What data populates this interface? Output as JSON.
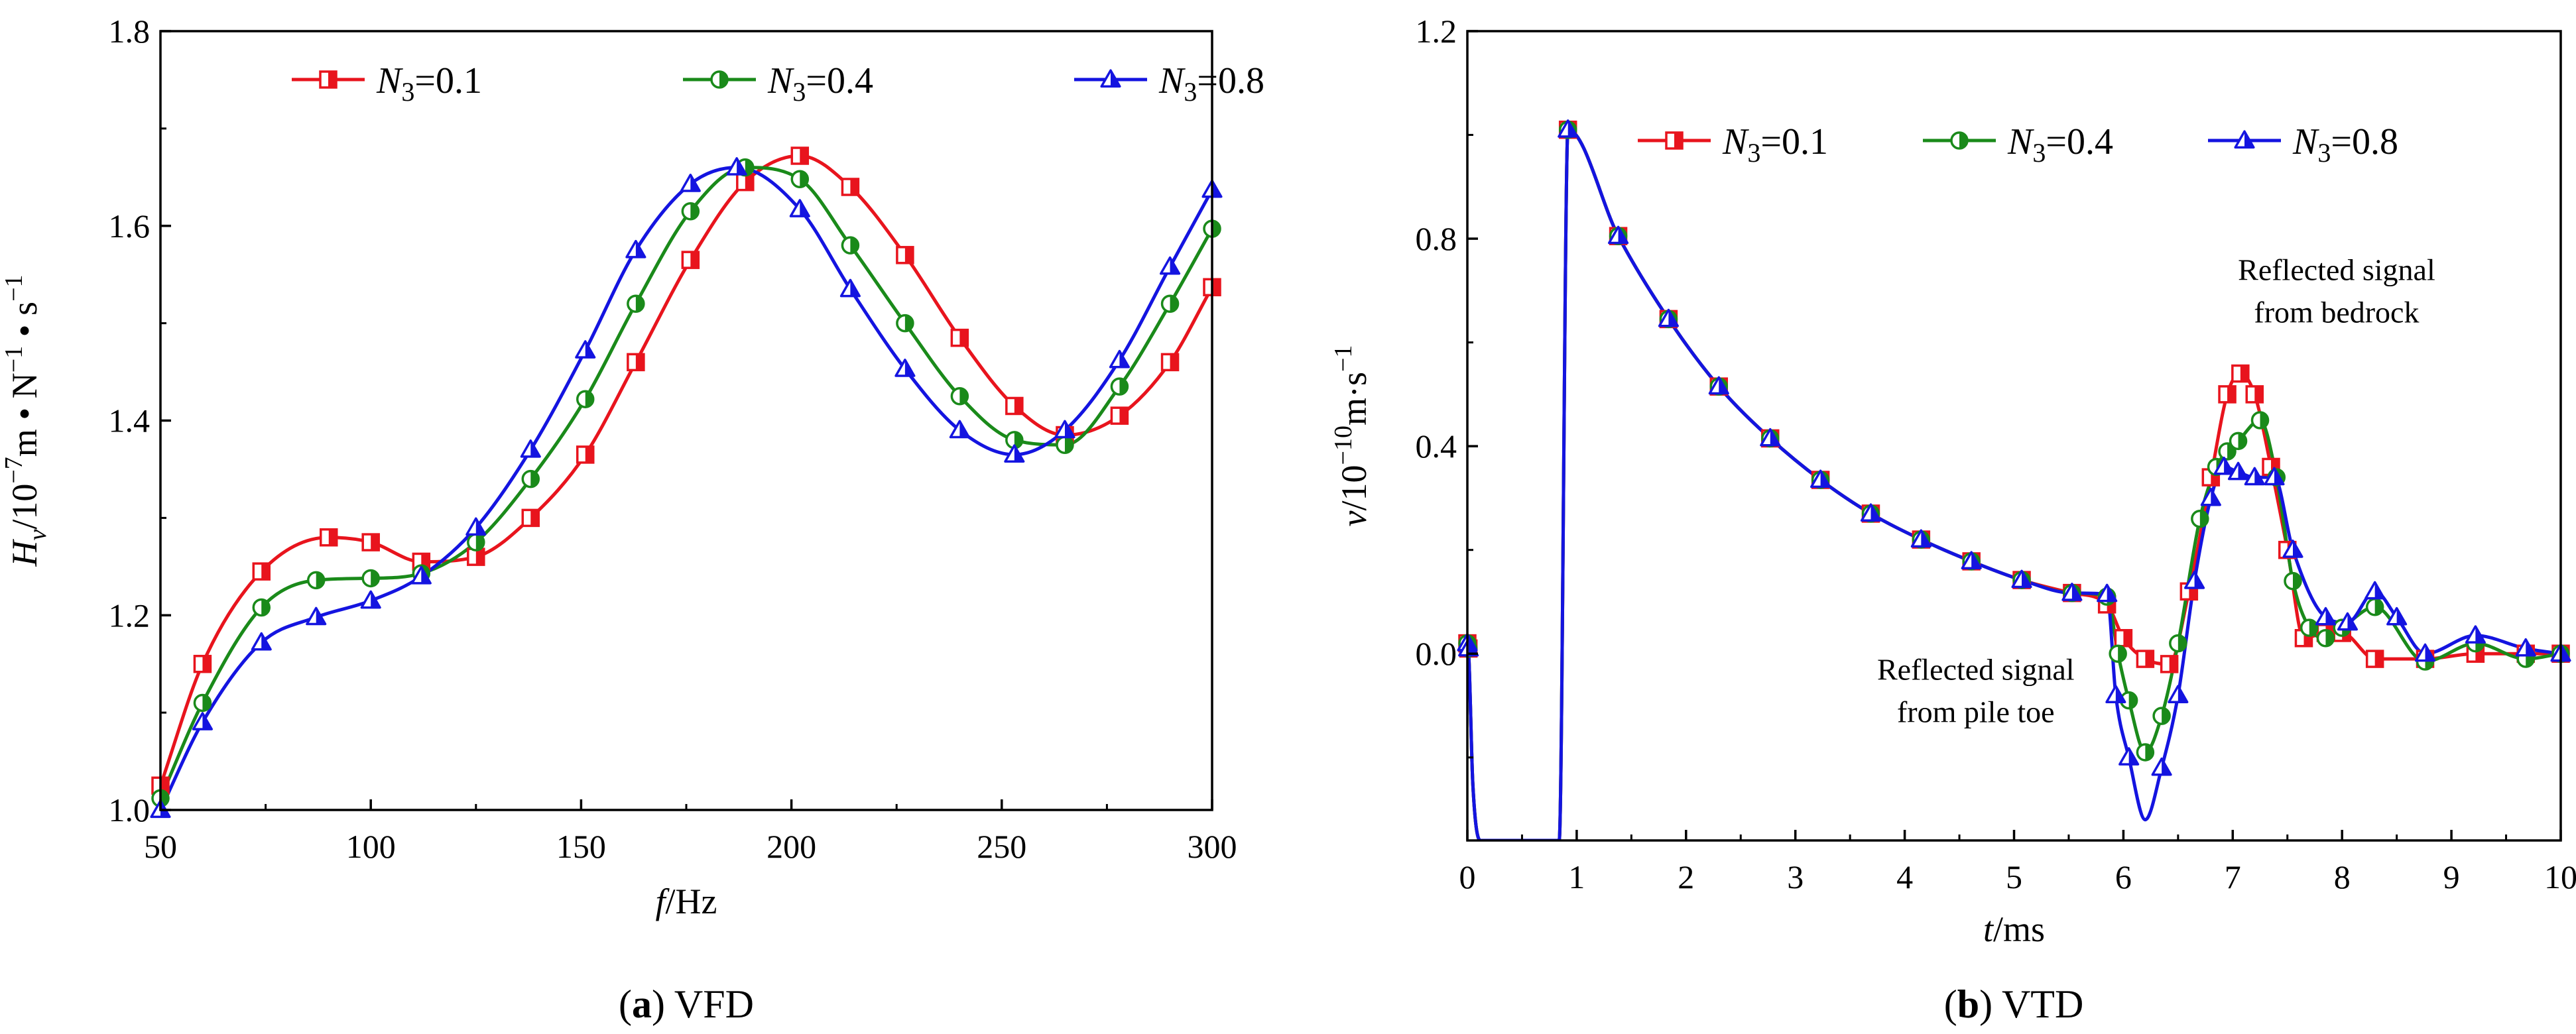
{
  "chart_data": [
    {
      "type": "line",
      "panel": "a",
      "caption": {
        "letter": "a",
        "text": " VFD"
      },
      "xlabel": {
        "var": "f",
        "unit": "/Hz"
      },
      "ylabel": {
        "var": "H",
        "sub": "v",
        "pre": "/10",
        "exp1": "−7",
        "mid": "m • N",
        "exp2": "−1",
        "mid2": " • s",
        "exp3": "−1"
      },
      "xlim": [
        50,
        300
      ],
      "ylim": [
        1.0,
        1.8
      ],
      "xticks": [
        50,
        100,
        150,
        200,
        250,
        300
      ],
      "yticks": [
        1.0,
        1.2,
        1.4,
        1.6,
        1.8
      ],
      "yprecision": 1,
      "legend_position": "top",
      "series": [
        {
          "label_var": "N",
          "label_sub": "3",
          "label_val": "=0.1",
          "color": "#e8141d",
          "marker": "square-half",
          "x": [
            50,
            60,
            74,
            90,
            100,
            112,
            125,
            138,
            151,
            163,
            176,
            189,
            202,
            214,
            227,
            240,
            253,
            265,
            278,
            290,
            300
          ],
          "y": [
            1.025,
            1.15,
            1.245,
            1.28,
            1.275,
            1.255,
            1.26,
            1.3,
            1.365,
            1.46,
            1.565,
            1.645,
            1.672,
            1.64,
            1.57,
            1.485,
            1.415,
            1.385,
            1.405,
            1.46,
            1.537
          ]
        },
        {
          "label_var": "N",
          "label_sub": "3",
          "label_val": "=0.4",
          "color": "#1a8a1a",
          "marker": "circle-half",
          "x": [
            50,
            60,
            74,
            87,
            100,
            112,
            125,
            138,
            151,
            163,
            176,
            189,
            202,
            214,
            227,
            240,
            253,
            265,
            278,
            290,
            300
          ],
          "y": [
            1.012,
            1.11,
            1.208,
            1.236,
            1.238,
            1.243,
            1.275,
            1.34,
            1.422,
            1.52,
            1.615,
            1.66,
            1.648,
            1.58,
            1.5,
            1.425,
            1.38,
            1.375,
            1.435,
            1.52,
            1.597
          ]
        },
        {
          "label_var": "N",
          "label_sub": "3",
          "label_val": "=0.8",
          "color": "#1414e0",
          "marker": "triangle-half",
          "x": [
            50,
            60,
            74,
            87,
            100,
            112,
            125,
            138,
            151,
            163,
            176,
            187,
            202,
            214,
            227,
            240,
            253,
            265,
            278,
            290,
            300
          ],
          "y": [
            1.0,
            1.09,
            1.172,
            1.198,
            1.215,
            1.24,
            1.29,
            1.37,
            1.472,
            1.575,
            1.643,
            1.66,
            1.617,
            1.535,
            1.453,
            1.39,
            1.365,
            1.39,
            1.462,
            1.558,
            1.637
          ]
        }
      ]
    },
    {
      "type": "line",
      "panel": "b",
      "caption": {
        "letter": "b",
        "text": " VTD"
      },
      "xlabel": {
        "var": "t",
        "unit": "/ms"
      },
      "ylabel": {
        "var": "v",
        "pre": "/10",
        "exp1": "−10",
        "mid": "m·s",
        "exp2": "−1"
      },
      "xlim": [
        0,
        10
      ],
      "ylim": [
        -0.36,
        1.2
      ],
      "xticks": [
        0,
        1,
        2,
        3,
        4,
        5,
        6,
        7,
        8,
        9,
        10
      ],
      "yticks": [
        0.0,
        0.4,
        0.8,
        1.2
      ],
      "yprecision": 1,
      "legend_position": "top-right",
      "annotations": [
        {
          "lines": [
            "Reflected signal",
            "from bedrock"
          ],
          "x": 7.95,
          "y": 0.72
        },
        {
          "lines": [
            "Reflected signal",
            "from pile toe"
          ],
          "x": 4.65,
          "y": -0.05
        }
      ],
      "series": [
        {
          "label_var": "N",
          "label_sub": "3",
          "label_val": "=0.1",
          "color": "#e8141d",
          "marker": "square-half",
          "x": [
            0.0,
            0.01,
            0.05,
            0.12,
            0.84,
            0.92,
            1.38,
            1.84,
            2.3,
            2.77,
            3.23,
            3.69,
            4.15,
            4.61,
            5.07,
            5.53,
            5.85,
            6.0,
            6.2,
            6.42,
            6.6,
            6.8,
            6.95,
            7.07,
            7.2,
            7.35,
            7.5,
            7.65,
            7.85,
            8.0,
            8.3,
            8.76,
            9.22,
            9.68,
            10.0
          ],
          "y": [
            0.02,
            0.01,
            -0.25,
            -0.36,
            -0.36,
            1.01,
            0.805,
            0.645,
            0.515,
            0.415,
            0.335,
            0.27,
            0.22,
            0.178,
            0.142,
            0.117,
            0.095,
            0.03,
            -0.01,
            -0.02,
            0.12,
            0.34,
            0.5,
            0.54,
            0.5,
            0.36,
            0.2,
            0.03,
            0.04,
            0.04,
            -0.01,
            -0.01,
            0.0,
            0.0,
            0.0
          ]
        },
        {
          "label_var": "N",
          "label_sub": "3",
          "label_val": "=0.4",
          "color": "#1a8a1a",
          "marker": "circle-half",
          "x": [
            0.0,
            0.01,
            0.05,
            0.12,
            0.84,
            0.92,
            1.38,
            1.84,
            2.3,
            2.77,
            3.23,
            3.69,
            4.15,
            4.61,
            5.07,
            5.53,
            5.85,
            5.95,
            6.05,
            6.2,
            6.35,
            6.5,
            6.7,
            6.85,
            6.95,
            7.05,
            7.25,
            7.4,
            7.55,
            7.7,
            7.85,
            8.0,
            8.3,
            8.76,
            9.22,
            9.68,
            10.0
          ],
          "y": [
            0.02,
            0.01,
            -0.25,
            -0.36,
            -0.36,
            1.01,
            0.805,
            0.645,
            0.515,
            0.415,
            0.335,
            0.27,
            0.22,
            0.178,
            0.142,
            0.117,
            0.11,
            0.0,
            -0.09,
            -0.19,
            -0.12,
            0.02,
            0.26,
            0.36,
            0.39,
            0.41,
            0.45,
            0.34,
            0.14,
            0.05,
            0.03,
            0.05,
            0.09,
            -0.015,
            0.02,
            -0.01,
            0.0
          ]
        },
        {
          "label_var": "N",
          "label_sub": "3",
          "label_val": "=0.8",
          "color": "#1414e0",
          "marker": "triangle-half",
          "x": [
            0.0,
            0.01,
            0.05,
            0.12,
            0.84,
            0.92,
            1.38,
            1.84,
            2.3,
            2.77,
            3.23,
            3.69,
            4.15,
            4.61,
            5.07,
            5.53,
            5.85,
            5.93,
            6.05,
            6.2,
            6.35,
            6.5,
            6.65,
            6.8,
            6.92,
            7.05,
            7.2,
            7.38,
            7.55,
            7.85,
            8.05,
            8.3,
            8.5,
            8.76,
            9.22,
            9.68,
            10.0
          ],
          "y": [
            0.02,
            0.01,
            -0.25,
            -0.36,
            -0.36,
            1.01,
            0.805,
            0.645,
            0.515,
            0.415,
            0.335,
            0.27,
            0.22,
            0.178,
            0.142,
            0.117,
            0.115,
            -0.08,
            -0.2,
            -0.32,
            -0.22,
            -0.08,
            0.14,
            0.3,
            0.36,
            0.35,
            0.34,
            0.34,
            0.2,
            0.07,
            0.06,
            0.12,
            0.07,
            0.0,
            0.035,
            0.01,
            0.0
          ]
        }
      ]
    }
  ]
}
